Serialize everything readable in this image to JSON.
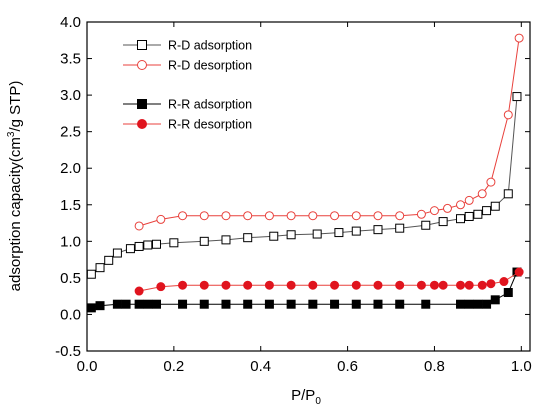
{
  "chart_data": {
    "type": "line",
    "xlabel": {
      "main": "P/P",
      "sub": "0"
    },
    "ylabel": {
      "pre": "adsorption capacity(cm",
      "sup": "3",
      "post": "/g STP)"
    },
    "xlim": [
      0.0,
      1.02
    ],
    "ylim": [
      -0.5,
      4.0
    ],
    "xticks": [
      "0.0",
      "0.2",
      "0.4",
      "0.6",
      "0.8",
      "1.0"
    ],
    "yticks": [
      "-0.5",
      "0.0",
      "0.5",
      "1.0",
      "1.5",
      "2.0",
      "2.5",
      "3.0",
      "3.5",
      "4.0"
    ],
    "grid": false,
    "legend_position": "top-left",
    "series": [
      {
        "name": "R-D adsorption",
        "color": "#000000",
        "line_color": "#555555",
        "marker": "square",
        "filled": false,
        "x": [
          0.01,
          0.03,
          0.05,
          0.07,
          0.1,
          0.12,
          0.14,
          0.16,
          0.2,
          0.27,
          0.32,
          0.37,
          0.43,
          0.47,
          0.53,
          0.58,
          0.62,
          0.67,
          0.72,
          0.78,
          0.82,
          0.86,
          0.88,
          0.9,
          0.92,
          0.94,
          0.97,
          0.99
        ],
        "y": [
          0.55,
          0.64,
          0.74,
          0.84,
          0.9,
          0.93,
          0.95,
          0.96,
          0.98,
          1.0,
          1.02,
          1.05,
          1.07,
          1.09,
          1.1,
          1.12,
          1.14,
          1.16,
          1.18,
          1.22,
          1.27,
          1.31,
          1.34,
          1.37,
          1.42,
          1.48,
          1.65,
          2.98
        ]
      },
      {
        "name": "R-D desorption",
        "color": "#e8413c",
        "line_color": "#e8413c",
        "marker": "circle",
        "filled": false,
        "x": [
          0.12,
          0.17,
          0.22,
          0.27,
          0.32,
          0.37,
          0.42,
          0.47,
          0.52,
          0.57,
          0.62,
          0.67,
          0.72,
          0.77,
          0.8,
          0.83,
          0.86,
          0.88,
          0.91,
          0.93,
          0.97,
          0.995
        ],
        "y": [
          1.21,
          1.3,
          1.35,
          1.35,
          1.35,
          1.35,
          1.35,
          1.35,
          1.35,
          1.35,
          1.35,
          1.35,
          1.35,
          1.37,
          1.42,
          1.45,
          1.5,
          1.56,
          1.65,
          1.81,
          2.73,
          3.78
        ]
      },
      {
        "name": "R-R adsorption",
        "color": "#000000",
        "line_color": "#000000",
        "marker": "square",
        "filled": true,
        "x": [
          0.01,
          0.03,
          0.07,
          0.09,
          0.12,
          0.14,
          0.16,
          0.22,
          0.27,
          0.32,
          0.37,
          0.42,
          0.47,
          0.52,
          0.57,
          0.62,
          0.67,
          0.72,
          0.78,
          0.86,
          0.88,
          0.9,
          0.92,
          0.94,
          0.97,
          0.99
        ],
        "y": [
          0.09,
          0.12,
          0.14,
          0.14,
          0.14,
          0.14,
          0.14,
          0.14,
          0.14,
          0.14,
          0.14,
          0.14,
          0.14,
          0.14,
          0.14,
          0.14,
          0.14,
          0.14,
          0.14,
          0.14,
          0.14,
          0.14,
          0.14,
          0.2,
          0.3,
          0.58
        ]
      },
      {
        "name": "R-R desorption",
        "color": "#e0141e",
        "line_color": "#e8413c",
        "marker": "circle",
        "filled": true,
        "x": [
          0.12,
          0.17,
          0.22,
          0.27,
          0.32,
          0.37,
          0.42,
          0.47,
          0.52,
          0.57,
          0.62,
          0.67,
          0.72,
          0.77,
          0.8,
          0.82,
          0.86,
          0.88,
          0.91,
          0.93,
          0.96,
          0.995
        ],
        "y": [
          0.32,
          0.38,
          0.4,
          0.4,
          0.4,
          0.4,
          0.4,
          0.4,
          0.4,
          0.4,
          0.4,
          0.4,
          0.4,
          0.4,
          0.4,
          0.4,
          0.4,
          0.4,
          0.4,
          0.42,
          0.45,
          0.58
        ]
      }
    ]
  }
}
